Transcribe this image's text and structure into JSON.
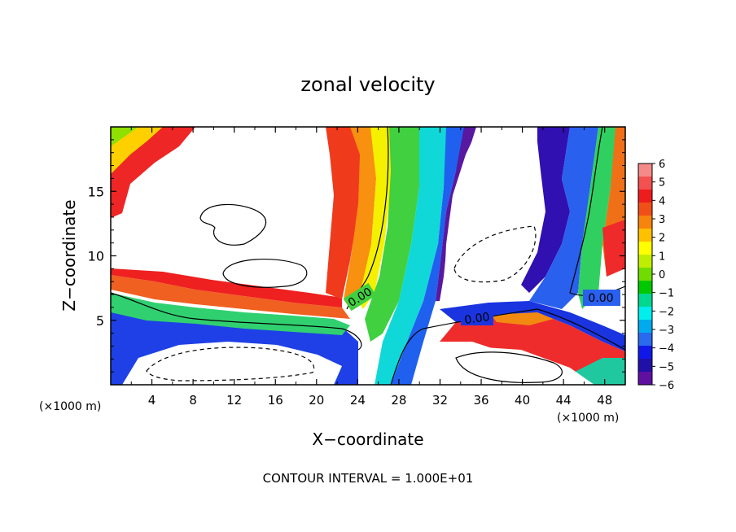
{
  "chart_data": {
    "type": "heatmap",
    "title": "zonal velocity",
    "xlabel": "X−coordinate",
    "ylabel": "Z−coordinate",
    "x_unit_left": "(×1000 m)",
    "x_unit_right": "(×1000 m)",
    "xlim": [
      0,
      50
    ],
    "ylim": [
      0,
      20
    ],
    "x_ticks": [
      "4",
      "8",
      "12",
      "16",
      "20",
      "24",
      "28",
      "32",
      "36",
      "40",
      "44",
      "48"
    ],
    "y_ticks": [
      "5",
      "10",
      "15"
    ],
    "footer": "CONTOUR INTERVAL = 1.000E+01",
    "colorbar": {
      "labels": [
        "6",
        "5",
        "4",
        "3",
        "2",
        "1",
        "0",
        "−1",
        "−2",
        "−3",
        "−4",
        "−5",
        "−6"
      ],
      "colors": [
        "#f58a8a",
        "#f35050",
        "#ee1c1c",
        "#f05018",
        "#f7840c",
        "#ffc000",
        "#ffff00",
        "#c0ee00",
        "#70dc00",
        "#00c800",
        "#00d890",
        "#00eeee",
        "#00aaee",
        "#2a6aee",
        "#1018e8",
        "#2010a8",
        "#6010a0"
      ]
    },
    "contour_labels": [
      "0.00",
      "0.00",
      "0.00"
    ],
    "field_note": "values above +6 and below −6 shown white"
  }
}
